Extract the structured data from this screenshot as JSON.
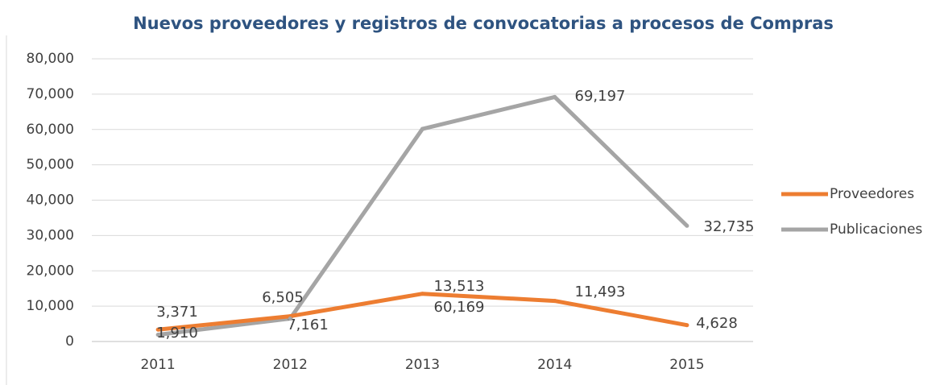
{
  "chart_data": {
    "type": "line",
    "title": "Nuevos proveedores y registros de convocatorias a procesos de Compras",
    "categories": [
      "2011",
      "2012",
      "2013",
      "2014",
      "2015"
    ],
    "series": [
      {
        "name": "Proveedores",
        "color": "#ed7d31",
        "values": [
          3371,
          7161,
          13513,
          11493,
          4628
        ],
        "value_labels": [
          "3,371",
          "7,161",
          "13,513",
          "11,493",
          "4,628"
        ]
      },
      {
        "name": "Publicaciones",
        "color": "#a5a5a5",
        "values": [
          1910,
          6505,
          60169,
          69197,
          32735
        ],
        "value_labels": [
          "1,910",
          "6,505",
          "60,169",
          "69,197",
          "32,735"
        ]
      }
    ],
    "ylim": [
      0,
      80000
    ],
    "yticks": [
      0,
      {
        "value": 10000,
        "label": "10,000"
      },
      {
        "value": 20000,
        "label": "20,000"
      },
      {
        "value": 30000,
        "label": "30,000"
      },
      {
        "value": 40000,
        "label": "40,000"
      },
      {
        "value": 50000,
        "label": "50,000"
      },
      {
        "value": 60000,
        "label": "60,000"
      },
      {
        "value": 70000,
        "label": "70,000"
      },
      {
        "value": 80000,
        "label": "80,000"
      }
    ],
    "grid": true,
    "legend": "right"
  }
}
